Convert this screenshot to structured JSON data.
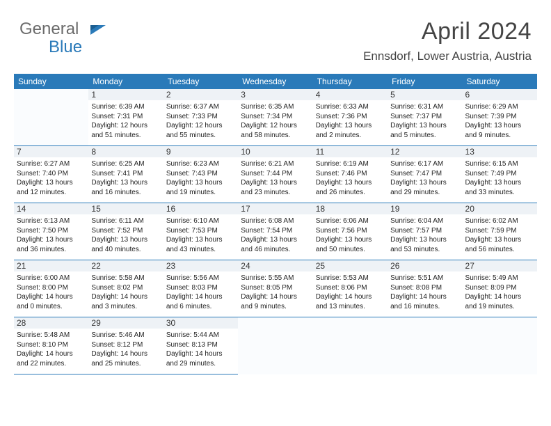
{
  "logo": {
    "top": "General",
    "bottom": "Blue"
  },
  "header": {
    "month_title": "April 2024",
    "location": "Ennsdorf, Lower Austria, Austria"
  },
  "weekdays": [
    "Sunday",
    "Monday",
    "Tuesday",
    "Wednesday",
    "Thursday",
    "Friday",
    "Saturday"
  ],
  "colors": {
    "header_bg": "#2a7ab9",
    "header_fg": "#ffffff",
    "rule": "#2a7ab9",
    "logo_gray": "#6b6b6b",
    "logo_blue": "#2a7ab9"
  },
  "days": [
    {
      "n": "1",
      "sr": "6:39 AM",
      "ss": "7:31 PM",
      "dl": "12 hours and 51 minutes."
    },
    {
      "n": "2",
      "sr": "6:37 AM",
      "ss": "7:33 PM",
      "dl": "12 hours and 55 minutes."
    },
    {
      "n": "3",
      "sr": "6:35 AM",
      "ss": "7:34 PM",
      "dl": "12 hours and 58 minutes."
    },
    {
      "n": "4",
      "sr": "6:33 AM",
      "ss": "7:36 PM",
      "dl": "13 hours and 2 minutes."
    },
    {
      "n": "5",
      "sr": "6:31 AM",
      "ss": "7:37 PM",
      "dl": "13 hours and 5 minutes."
    },
    {
      "n": "6",
      "sr": "6:29 AM",
      "ss": "7:39 PM",
      "dl": "13 hours and 9 minutes."
    },
    {
      "n": "7",
      "sr": "6:27 AM",
      "ss": "7:40 PM",
      "dl": "13 hours and 12 minutes."
    },
    {
      "n": "8",
      "sr": "6:25 AM",
      "ss": "7:41 PM",
      "dl": "13 hours and 16 minutes."
    },
    {
      "n": "9",
      "sr": "6:23 AM",
      "ss": "7:43 PM",
      "dl": "13 hours and 19 minutes."
    },
    {
      "n": "10",
      "sr": "6:21 AM",
      "ss": "7:44 PM",
      "dl": "13 hours and 23 minutes."
    },
    {
      "n": "11",
      "sr": "6:19 AM",
      "ss": "7:46 PM",
      "dl": "13 hours and 26 minutes."
    },
    {
      "n": "12",
      "sr": "6:17 AM",
      "ss": "7:47 PM",
      "dl": "13 hours and 29 minutes."
    },
    {
      "n": "13",
      "sr": "6:15 AM",
      "ss": "7:49 PM",
      "dl": "13 hours and 33 minutes."
    },
    {
      "n": "14",
      "sr": "6:13 AM",
      "ss": "7:50 PM",
      "dl": "13 hours and 36 minutes."
    },
    {
      "n": "15",
      "sr": "6:11 AM",
      "ss": "7:52 PM",
      "dl": "13 hours and 40 minutes."
    },
    {
      "n": "16",
      "sr": "6:10 AM",
      "ss": "7:53 PM",
      "dl": "13 hours and 43 minutes."
    },
    {
      "n": "17",
      "sr": "6:08 AM",
      "ss": "7:54 PM",
      "dl": "13 hours and 46 minutes."
    },
    {
      "n": "18",
      "sr": "6:06 AM",
      "ss": "7:56 PM",
      "dl": "13 hours and 50 minutes."
    },
    {
      "n": "19",
      "sr": "6:04 AM",
      "ss": "7:57 PM",
      "dl": "13 hours and 53 minutes."
    },
    {
      "n": "20",
      "sr": "6:02 AM",
      "ss": "7:59 PM",
      "dl": "13 hours and 56 minutes."
    },
    {
      "n": "21",
      "sr": "6:00 AM",
      "ss": "8:00 PM",
      "dl": "14 hours and 0 minutes."
    },
    {
      "n": "22",
      "sr": "5:58 AM",
      "ss": "8:02 PM",
      "dl": "14 hours and 3 minutes."
    },
    {
      "n": "23",
      "sr": "5:56 AM",
      "ss": "8:03 PM",
      "dl": "14 hours and 6 minutes."
    },
    {
      "n": "24",
      "sr": "5:55 AM",
      "ss": "8:05 PM",
      "dl": "14 hours and 9 minutes."
    },
    {
      "n": "25",
      "sr": "5:53 AM",
      "ss": "8:06 PM",
      "dl": "14 hours and 13 minutes."
    },
    {
      "n": "26",
      "sr": "5:51 AM",
      "ss": "8:08 PM",
      "dl": "14 hours and 16 minutes."
    },
    {
      "n": "27",
      "sr": "5:49 AM",
      "ss": "8:09 PM",
      "dl": "14 hours and 19 minutes."
    },
    {
      "n": "28",
      "sr": "5:48 AM",
      "ss": "8:10 PM",
      "dl": "14 hours and 22 minutes."
    },
    {
      "n": "29",
      "sr": "5:46 AM",
      "ss": "8:12 PM",
      "dl": "14 hours and 25 minutes."
    },
    {
      "n": "30",
      "sr": "5:44 AM",
      "ss": "8:13 PM",
      "dl": "14 hours and 29 minutes."
    }
  ],
  "labels": {
    "sunrise": "Sunrise: ",
    "sunset": "Sunset: ",
    "daylight": "Daylight: "
  },
  "layout": {
    "start_weekday": 1,
    "cell_font_size": 10,
    "header_font_size": 12,
    "title_font_size": 34,
    "location_font_size": 17
  }
}
